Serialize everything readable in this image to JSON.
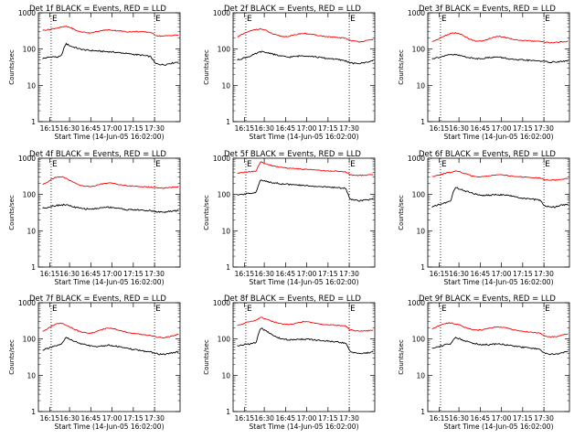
{
  "colors": {
    "events": "#000000",
    "lld": "#ff0000",
    "axes": "#000000"
  },
  "chart_data": [
    {
      "type": "line",
      "title": "Det 1f BLACK = Events, RED = LLD",
      "xlabel": "Start Time (14-Jun-05 16:02:00)",
      "ylabel": "Counts/sec",
      "x_ticks": [
        "16:15",
        "16:30",
        "16:45",
        "17:00",
        "17:15",
        "17:30"
      ],
      "y_scale": "log",
      "ylim": [
        1,
        1000
      ],
      "y_ticks": [
        "1",
        "10",
        "100",
        "1000"
      ],
      "markers": [
        "E",
        "E"
      ],
      "series": [
        {
          "name": "Events",
          "color": "black",
          "values": [
            55,
            58,
            62,
            60,
            64,
            140,
            120,
            110,
            100,
            95,
            92,
            90,
            88,
            86,
            85,
            83,
            80,
            78,
            75,
            73,
            70,
            68,
            65,
            62,
            40,
            38,
            37,
            40,
            42,
            45
          ]
        },
        {
          "name": "LLD",
          "color": "red",
          "values": [
            330,
            340,
            360,
            380,
            400,
            420,
            390,
            330,
            300,
            290,
            280,
            290,
            310,
            330,
            340,
            330,
            320,
            310,
            300,
            300,
            305,
            300,
            295,
            290,
            240,
            230,
            230,
            235,
            240,
            245
          ]
        }
      ]
    },
    {
      "type": "line",
      "title": "Det 2f BLACK = Events, RED = LLD",
      "xlabel": "Start Time (14-Jun-05 16:02:00)",
      "ylabel": "Counts/sec",
      "x_ticks": [
        "16:15",
        "16:30",
        "16:45",
        "17:00",
        "17:15",
        "17:30"
      ],
      "y_scale": "log",
      "ylim": [
        1,
        1000
      ],
      "y_ticks": [
        "1",
        "10",
        "100",
        "1000"
      ],
      "markers": [
        "E",
        "E"
      ],
      "series": [
        {
          "name": "Events",
          "color": "black",
          "values": [
            50,
            55,
            60,
            65,
            75,
            85,
            80,
            78,
            70,
            65,
            62,
            60,
            62,
            64,
            66,
            65,
            63,
            60,
            58,
            55,
            55,
            52,
            50,
            48,
            42,
            40,
            40,
            42,
            45,
            48
          ]
        },
        {
          "name": "LLD",
          "color": "red",
          "values": [
            220,
            250,
            290,
            320,
            350,
            360,
            330,
            280,
            250,
            230,
            220,
            225,
            240,
            260,
            270,
            265,
            250,
            240,
            230,
            220,
            215,
            210,
            205,
            200,
            175,
            165,
            160,
            165,
            175,
            185
          ]
        }
      ]
    },
    {
      "type": "line",
      "title": "Det 3f BLACK = Events, RED = LLD",
      "xlabel": "Start Time (14-Jun-05 16:02:00)",
      "ylabel": "Counts/sec",
      "x_ticks": [
        "16:15",
        "16:30",
        "16:45",
        "17:00",
        "17:15",
        "17:30"
      ],
      "y_scale": "log",
      "ylim": [
        1,
        1000
      ],
      "y_ticks": [
        "1",
        "10",
        "100",
        "1000"
      ],
      "markers": [
        "E",
        "E"
      ],
      "series": [
        {
          "name": "Events",
          "color": "black",
          "values": [
            55,
            58,
            62,
            66,
            70,
            70,
            66,
            62,
            58,
            55,
            55,
            56,
            58,
            60,
            60,
            58,
            55,
            52,
            50,
            50,
            50,
            48,
            48,
            47,
            45,
            44,
            44,
            45,
            46,
            48
          ]
        },
        {
          "name": "LLD",
          "color": "red",
          "values": [
            160,
            180,
            210,
            240,
            270,
            280,
            260,
            220,
            190,
            170,
            165,
            170,
            190,
            210,
            225,
            220,
            205,
            190,
            180,
            175,
            170,
            168,
            165,
            162,
            155,
            150,
            150,
            155,
            160,
            165
          ]
        }
      ]
    },
    {
      "type": "line",
      "title": "Det 4f BLACK = Events, RED = LLD",
      "xlabel": "Start Time (14-Jun-05 16:02:00)",
      "ylabel": "Counts/sec",
      "x_ticks": [
        "16:15",
        "16:30",
        "16:45",
        "17:00",
        "17:15",
        "17:30"
      ],
      "y_scale": "log",
      "ylim": [
        1,
        1000
      ],
      "y_ticks": [
        "1",
        "10",
        "100",
        "1000"
      ],
      "markers": [
        "E",
        "E"
      ],
      "series": [
        {
          "name": "Events",
          "color": "black",
          "values": [
            42,
            44,
            48,
            50,
            52,
            52,
            48,
            44,
            42,
            40,
            40,
            40,
            42,
            44,
            45,
            44,
            42,
            40,
            38,
            38,
            38,
            37,
            36,
            36,
            34,
            33,
            33,
            34,
            35,
            36
          ]
        },
        {
          "name": "LLD",
          "color": "red",
          "values": [
            190,
            220,
            270,
            300,
            310,
            280,
            240,
            200,
            180,
            170,
            165,
            170,
            185,
            200,
            210,
            205,
            190,
            180,
            175,
            170,
            168,
            165,
            162,
            160,
            155,
            150,
            150,
            155,
            160,
            165
          ]
        }
      ]
    },
    {
      "type": "line",
      "title": "Det 5f BLACK = Events, RED = LLD",
      "xlabel": "Start Time (14-Jun-05 16:02:00)",
      "ylabel": "Counts/sec",
      "x_ticks": [
        "16:15",
        "16:30",
        "16:45",
        "17:00",
        "17:15",
        "17:30"
      ],
      "y_scale": "log",
      "ylim": [
        1,
        1000
      ],
      "y_ticks": [
        "1",
        "10",
        "100",
        "1000"
      ],
      "markers": [
        "E",
        "E"
      ],
      "series": [
        {
          "name": "Events",
          "color": "black",
          "values": [
            95,
            100,
            105,
            110,
            115,
            250,
            230,
            220,
            210,
            200,
            195,
            190,
            185,
            180,
            178,
            175,
            170,
            168,
            165,
            160,
            158,
            155,
            152,
            150,
            75,
            70,
            68,
            70,
            72,
            75
          ]
        },
        {
          "name": "LLD",
          "color": "red",
          "values": [
            380,
            400,
            420,
            430,
            440,
            780,
            700,
            650,
            600,
            570,
            550,
            530,
            520,
            510,
            500,
            490,
            480,
            470,
            460,
            450,
            445,
            440,
            435,
            430,
            350,
            340,
            335,
            340,
            345,
            350
          ]
        }
      ]
    },
    {
      "type": "line",
      "title": "Det 6f BLACK = Events, RED = LLD",
      "xlabel": "Start Time (14-Jun-05 16:02:00)",
      "ylabel": "Counts/sec",
      "x_ticks": [
        "16:15",
        "16:30",
        "16:45",
        "17:00",
        "17:15",
        "17:30"
      ],
      "y_scale": "log",
      "ylim": [
        1,
        1000
      ],
      "y_ticks": [
        "1",
        "10",
        "100",
        "1000"
      ],
      "markers": [
        "E",
        "E"
      ],
      "series": [
        {
          "name": "Events",
          "color": "black",
          "values": [
            45,
            50,
            55,
            60,
            65,
            160,
            140,
            125,
            115,
            105,
            98,
            95,
            95,
            98,
            100,
            98,
            95,
            90,
            85,
            80,
            78,
            75,
            72,
            70,
            48,
            46,
            45,
            48,
            52,
            55
          ]
        },
        {
          "name": "LLD",
          "color": "red",
          "values": [
            310,
            330,
            360,
            390,
            410,
            440,
            420,
            380,
            340,
            320,
            310,
            310,
            320,
            340,
            350,
            345,
            335,
            320,
            310,
            305,
            300,
            295,
            290,
            285,
            260,
            250,
            250,
            255,
            265,
            275
          ]
        }
      ]
    },
    {
      "type": "line",
      "title": "Det 7f BLACK = Events, RED = LLD",
      "xlabel": "Start Time (14-Jun-05 16:02:00)",
      "ylabel": "Counts/sec",
      "x_ticks": [
        "16:15",
        "16:30",
        "16:45",
        "17:00",
        "17:15",
        "17:30"
      ],
      "y_scale": "log",
      "ylim": [
        1,
        1000
      ],
      "y_ticks": [
        "1",
        "10",
        "100",
        "1000"
      ],
      "markers": [
        "E",
        "E"
      ],
      "series": [
        {
          "name": "Events",
          "color": "black",
          "values": [
            50,
            55,
            60,
            65,
            70,
            110,
            95,
            85,
            75,
            70,
            65,
            62,
            62,
            65,
            68,
            66,
            62,
            58,
            55,
            52,
            50,
            48,
            46,
            44,
            40,
            38,
            38,
            40,
            42,
            45
          ]
        },
        {
          "name": "LLD",
          "color": "red",
          "values": [
            160,
            190,
            230,
            260,
            270,
            240,
            210,
            180,
            160,
            150,
            145,
            150,
            170,
            190,
            200,
            195,
            180,
            165,
            155,
            145,
            140,
            135,
            130,
            125,
            115,
            110,
            110,
            115,
            125,
            135
          ]
        }
      ]
    },
    {
      "type": "line",
      "title": "Det 8f BLACK = Events, RED = LLD",
      "xlabel": "Start Time (14-Jun-05 16:02:00)",
      "ylabel": "Counts/sec",
      "x_ticks": [
        "16:15",
        "16:30",
        "16:45",
        "17:00",
        "17:15",
        "17:30"
      ],
      "y_scale": "log",
      "ylim": [
        1,
        1000
      ],
      "y_ticks": [
        "1",
        "10",
        "100",
        "1000"
      ],
      "markers": [
        "E",
        "E"
      ],
      "series": [
        {
          "name": "Events",
          "color": "black",
          "values": [
            65,
            68,
            72,
            75,
            80,
            200,
            170,
            140,
            120,
            105,
            98,
            95,
            95,
            98,
            100,
            98,
            95,
            92,
            90,
            88,
            85,
            82,
            80,
            78,
            45,
            42,
            40,
            40,
            42,
            45
          ]
        },
        {
          "name": "LLD",
          "color": "red",
          "values": [
            230,
            260,
            290,
            310,
            330,
            400,
            360,
            320,
            290,
            270,
            255,
            250,
            260,
            280,
            300,
            295,
            280,
            265,
            255,
            250,
            245,
            240,
            235,
            230,
            180,
            170,
            165,
            165,
            170,
            180
          ]
        }
      ]
    },
    {
      "type": "line",
      "title": "Det 9f BLACK = Events, RED = LLD",
      "xlabel": "Start Time (14-Jun-05 16:02:00)",
      "ylabel": "Counts/sec",
      "x_ticks": [
        "16:15",
        "16:30",
        "16:45",
        "17:00",
        "17:15",
        "17:30"
      ],
      "y_scale": "log",
      "ylim": [
        1,
        1000
      ],
      "y_ticks": [
        "1",
        "10",
        "100",
        "1000"
      ],
      "markers": [
        "E",
        "E"
      ],
      "series": [
        {
          "name": "Events",
          "color": "black",
          "values": [
            55,
            60,
            65,
            70,
            75,
            110,
            100,
            90,
            82,
            76,
            72,
            70,
            70,
            72,
            74,
            72,
            68,
            65,
            62,
            60,
            58,
            56,
            54,
            52,
            40,
            38,
            38,
            40,
            42,
            45
          ]
        },
        {
          "name": "LLD",
          "color": "red",
          "values": [
            190,
            220,
            250,
            270,
            280,
            260,
            240,
            210,
            190,
            180,
            175,
            180,
            195,
            210,
            215,
            210,
            200,
            185,
            175,
            165,
            160,
            155,
            150,
            145,
            120,
            115,
            115,
            120,
            130,
            140
          ]
        }
      ]
    }
  ]
}
